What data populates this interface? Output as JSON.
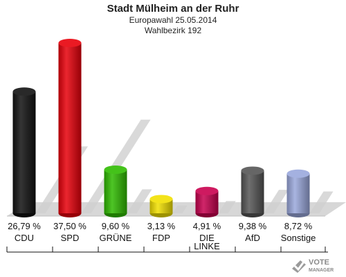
{
  "chart_data": {
    "type": "bar",
    "title": "Stadt Mülheim an der Ruhr",
    "subtitle": "Europawahl 25.05.2014",
    "subtitle2": "Wahlbezirk 192",
    "categories": [
      "CDU",
      "SPD",
      "GRÜNE",
      "FDP",
      "DIE LINKE",
      "AfD",
      "Sonstige"
    ],
    "values": [
      26.79,
      37.5,
      9.6,
      3.13,
      4.91,
      9.38,
      8.72
    ],
    "value_labels": [
      "26,79 %",
      "37,50 %",
      "9,60 %",
      "3,13 %",
      "4,91 %",
      "9,38 %",
      "8,72 %"
    ],
    "colors": [
      "#111111",
      "#e8000a",
      "#2fbb00",
      "#f2e000",
      "#c8004e",
      "#555555",
      "#9aa8dc"
    ],
    "ylim": [
      0,
      37.5
    ],
    "grid": false
  },
  "logo": {
    "line1": "VOTE",
    "line2": "MANAGER"
  }
}
